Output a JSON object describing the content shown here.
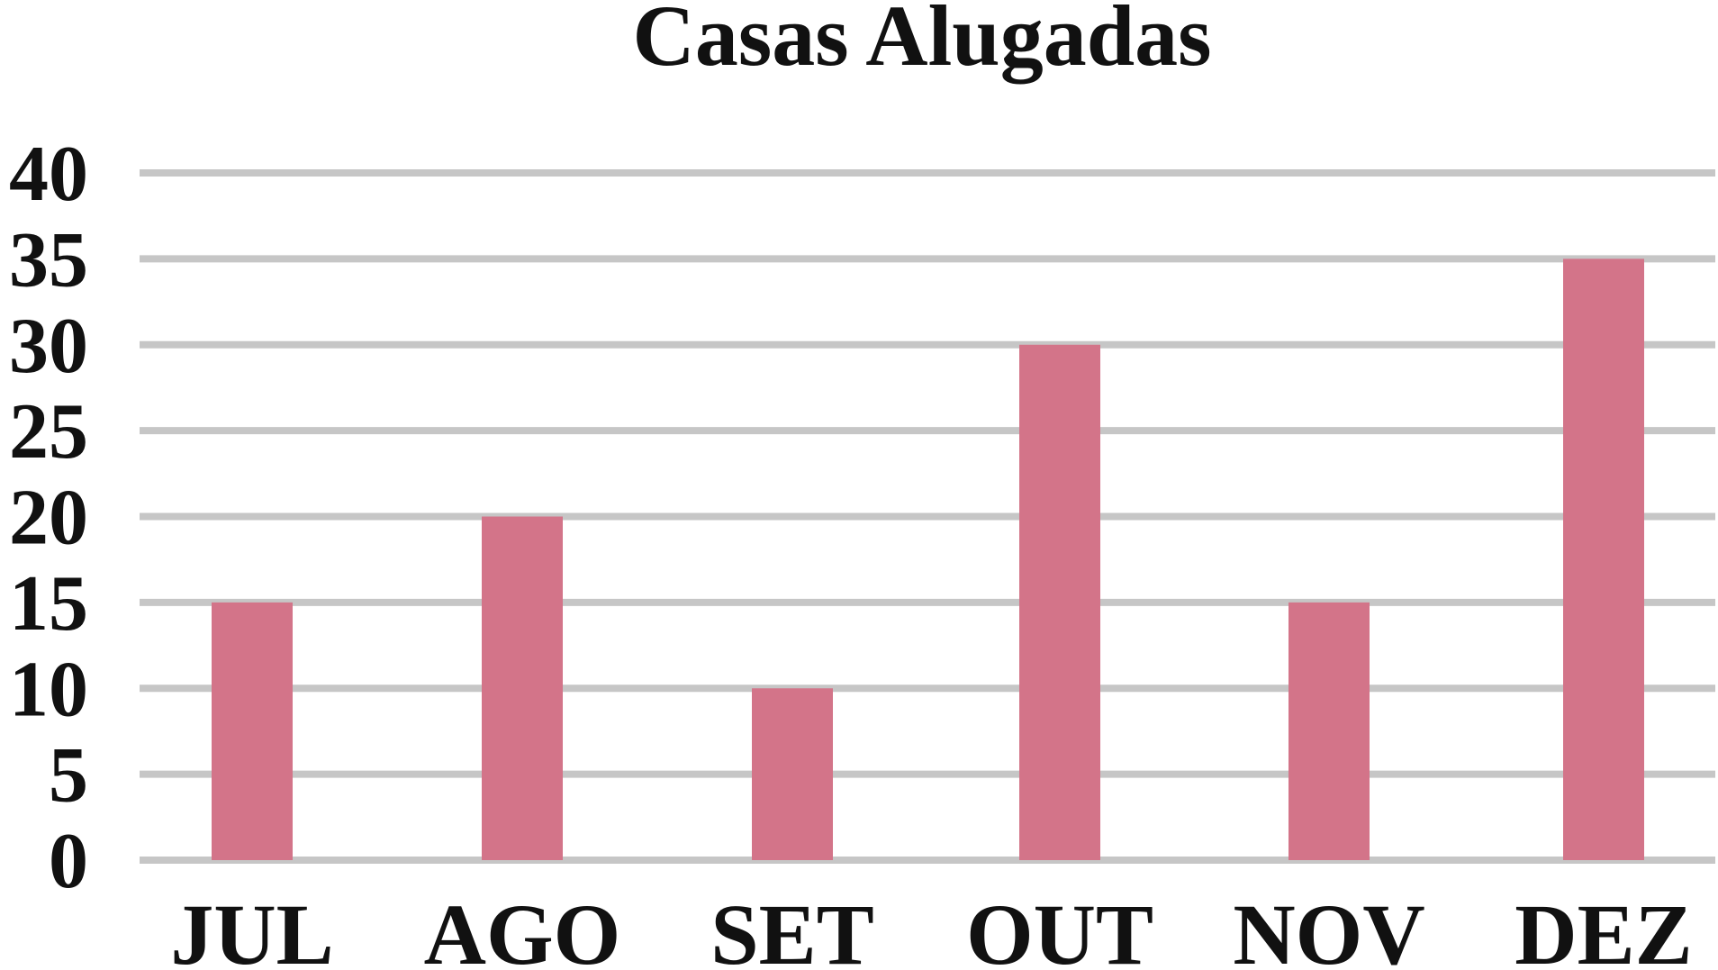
{
  "chart_data": {
    "type": "bar",
    "title": "Casas Alugadas",
    "xlabel": "",
    "ylabel": "",
    "categories": [
      "JUL",
      "AGO",
      "SET",
      "OUT",
      "NOV",
      "DEZ"
    ],
    "values": [
      15,
      20,
      10,
      30,
      15,
      35
    ],
    "ylim": [
      0,
      40
    ],
    "yticks": [
      "0",
      "5",
      "10",
      "15",
      "20",
      "25",
      "30",
      "35",
      "40"
    ],
    "grid": true,
    "legend": "none",
    "colors": {
      "bar": "#d37489",
      "grid": "#c6c6c6",
      "text": "#111111"
    }
  }
}
